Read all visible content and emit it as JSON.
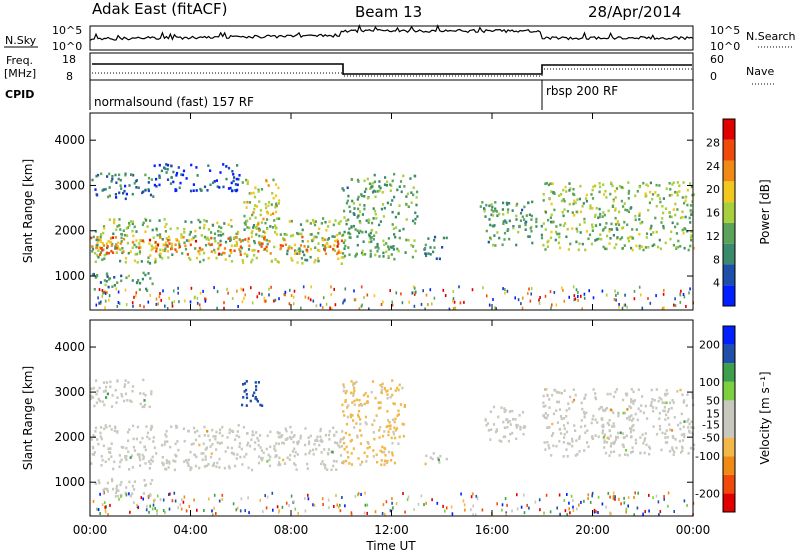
{
  "header": {
    "station": "Adak East (fitACF)",
    "beam": "Beam 13",
    "date": "28/Apr/2014"
  },
  "strip_labels": {
    "nsky": "N.Sky",
    "freq_line1": "Freq.",
    "freq_line2": "[MHz]",
    "cpid": "CPID",
    "nsearch": "N.Search",
    "nave": "Nave",
    "nsky_top": "10^5",
    "nsky_bottom": "10^0",
    "nsearch_top": "10^5",
    "nsearch_bottom": "10^0",
    "freq_top": "18",
    "freq_bottom": "8",
    "nave_top": "60",
    "nave_bottom": "0",
    "program_1": "normalsound (fast) 157 RF",
    "program_2": "rbsp 200 RF"
  },
  "colors": {
    "power_scale": [
      "#0020ff",
      "#1f4fa8",
      "#3c8a6e",
      "#5aa35a",
      "#a8cf3c",
      "#f2c81e",
      "#f08a14",
      "#f04a0a",
      "#e00000"
    ],
    "velocity_scale": [
      "#e00000",
      "#f04a0a",
      "#f08a14",
      "#f2b84a",
      "#c8c8be",
      "#c8c8be",
      "#7cd040",
      "#3ca04a",
      "#1f4fa8",
      "#0020ff"
    ],
    "gray": "#c8c8be"
  },
  "chart_data": [
    {
      "type": "heatmap",
      "panel": "power",
      "ylabel": "Slant Range [km]",
      "yticks": [
        1000,
        2000,
        3000,
        4000
      ],
      "ylim": [
        250,
        4600
      ],
      "colorbar_label": "Power [dB]",
      "colorbar_ticks": [
        4,
        8,
        12,
        16,
        20,
        24,
        28
      ],
      "colorbar_range": [
        0,
        32
      ],
      "bands": [
        {
          "t": [
            0,
            10
          ],
          "r": [
            1300,
            2300
          ],
          "level": 14
        },
        {
          "t": [
            0,
            10
          ],
          "r": [
            1500,
            1900
          ],
          "level": 24
        },
        {
          "t": [
            0,
            2.5
          ],
          "r": [
            2700,
            3300
          ],
          "level": 7
        },
        {
          "t": [
            2.5,
            6
          ],
          "r": [
            2900,
            3500
          ],
          "level": 5
        },
        {
          "t": [
            6,
            7.5
          ],
          "r": [
            2000,
            3200
          ],
          "level": 17
        },
        {
          "t": [
            0,
            2.5
          ],
          "r": [
            700,
            1100
          ],
          "level": 10
        },
        {
          "t": [
            10,
            13
          ],
          "r": [
            1400,
            3300
          ],
          "level": 12
        },
        {
          "t": [
            13.2,
            14.2
          ],
          "r": [
            1400,
            1900
          ],
          "level": 9
        },
        {
          "t": [
            15.5,
            18
          ],
          "r": [
            1700,
            2700
          ],
          "level": 11
        },
        {
          "t": [
            18,
            24
          ],
          "r": [
            1600,
            3100
          ],
          "level": 14
        }
      ]
    },
    {
      "type": "heatmap",
      "panel": "velocity",
      "ylabel": "Slant Range [km]",
      "yticks": [
        1000,
        2000,
        3000,
        4000
      ],
      "ylim": [
        250,
        4600
      ],
      "colorbar_label": "Velocity [m s⁻¹]",
      "colorbar_ticks": [
        -200,
        -100,
        -50,
        -15,
        15,
        50,
        100,
        200
      ],
      "colorbar_range": [
        -250,
        250
      ],
      "bands": [
        {
          "t": [
            0,
            10
          ],
          "r": [
            1300,
            2300
          ],
          "level": 0
        },
        {
          "t": [
            0,
            2.5
          ],
          "r": [
            2700,
            3300
          ],
          "level": 0
        },
        {
          "t": [
            0,
            2.5
          ],
          "r": [
            700,
            1100
          ],
          "level": 0
        },
        {
          "t": [
            6,
            7
          ],
          "r": [
            2700,
            3300
          ],
          "level": 180
        },
        {
          "t": [
            10,
            12.5
          ],
          "r": [
            1400,
            3300
          ],
          "level": -60
        },
        {
          "t": [
            13.3,
            14.2
          ],
          "r": [
            1400,
            1700
          ],
          "level": 0
        },
        {
          "t": [
            15.7,
            17.3
          ],
          "r": [
            1900,
            2700
          ],
          "level": 30
        },
        {
          "t": [
            18,
            24
          ],
          "r": [
            1600,
            3100
          ],
          "level": 0
        }
      ]
    }
  ],
  "xaxis": {
    "label": "Time UT",
    "ticks": [
      "00:00",
      "04:00",
      "08:00",
      "12:00",
      "16:00",
      "20:00",
      "00:00"
    ],
    "range_hours": [
      0,
      24
    ]
  }
}
